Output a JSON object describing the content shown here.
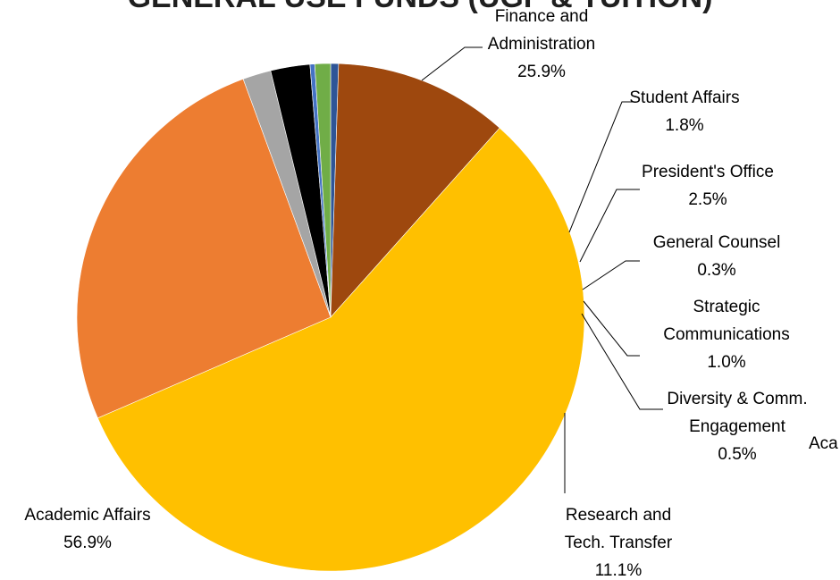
{
  "chart_data": {
    "type": "pie",
    "title": "GENERAL USE FUNDS (UGF & TUITION)",
    "start_angle_deg": 90,
    "direction": "clockwise",
    "slices": [
      {
        "name": "Diversity & Comm. Engagement",
        "label_lines": [
          "Diversity & Comm.",
          "Engagement"
        ],
        "value": 0.5,
        "pct_label": "0.5%",
        "color": "#2e5597"
      },
      {
        "name": "Research and Tech. Transfer",
        "label_lines": [
          "Research and",
          "Tech. Transfer"
        ],
        "value": 11.1,
        "pct_label": "11.1%",
        "color": "#9e480e"
      },
      {
        "name": "Academic Affairs",
        "label_lines": [
          "Academic Affairs"
        ],
        "value": 56.9,
        "pct_label": "56.9%",
        "color": "#ffc000"
      },
      {
        "name": "Finance and Administration",
        "label_lines": [
          "Finance and",
          "Administration"
        ],
        "value": 25.9,
        "pct_label": "25.9%",
        "color": "#ed7d31"
      },
      {
        "name": "Student Affairs",
        "label_lines": [
          "Student Affairs"
        ],
        "value": 1.8,
        "pct_label": "1.8%",
        "color": "#a5a5a5"
      },
      {
        "name": "President's Office",
        "label_lines": [
          "President's Office"
        ],
        "value": 2.5,
        "pct_label": "2.5%",
        "color": "#000000"
      },
      {
        "name": "General Counsel",
        "label_lines": [
          "General Counsel"
        ],
        "value": 0.3,
        "pct_label": "0.3%",
        "color": "#4472c4"
      },
      {
        "name": "Strategic Communications",
        "label_lines": [
          "Strategic",
          "Communications"
        ],
        "value": 1.0,
        "pct_label": "1.0%",
        "color": "#70ad47"
      }
    ],
    "extra_text": "Aca"
  }
}
